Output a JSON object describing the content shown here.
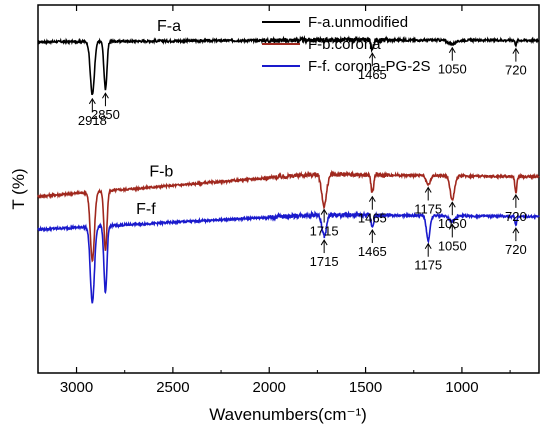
{
  "chart_data": {
    "type": "line",
    "title": "",
    "xlabel": "Wavenumbers(cm⁻¹)",
    "ylabel": "T (%)",
    "xlim": [
      3200,
      600
    ],
    "x_inverted": true,
    "x_ticks": [
      "3000",
      "2500",
      "2000",
      "1500",
      "1000"
    ],
    "x_tick_values": [
      3000,
      2500,
      2000,
      1500,
      1000
    ],
    "y_ticks_shown": false,
    "legend_position": "top-right",
    "series": [
      {
        "name": "F-a.unmodified",
        "label": "F-a",
        "color": "#000000",
        "baseline": 0.9,
        "tilt": 0.04,
        "peaks": [
          {
            "x": 2918,
            "depth": 0.58,
            "width": 15,
            "label": "2918"
          },
          {
            "x": 2850,
            "depth": 0.52,
            "width": 11,
            "label": "2850"
          },
          {
            "x": 1465,
            "depth": 0.1,
            "width": 9,
            "label": "1465"
          },
          {
            "x": 1050,
            "depth": 0.04,
            "width": 30,
            "label": "1050"
          },
          {
            "x": 720,
            "depth": 0.05,
            "width": 6,
            "label": "720"
          }
        ]
      },
      {
        "name": "F-b.corona",
        "label": "F-b",
        "color": "#a0281e",
        "baseline": 0.48,
        "tilt": 0.5,
        "peaks": [
          {
            "x": 2918,
            "depth": 0.75,
            "width": 15,
            "label": ""
          },
          {
            "x": 2850,
            "depth": 0.65,
            "width": 11,
            "label": ""
          },
          {
            "x": 1715,
            "depth": 0.34,
            "width": 18,
            "label": "1715"
          },
          {
            "x": 1465,
            "depth": 0.2,
            "width": 9,
            "label": "1465"
          },
          {
            "x": 1175,
            "depth": 0.1,
            "width": 16,
            "label": "1175"
          },
          {
            "x": 1050,
            "depth": 0.26,
            "width": 16,
            "label": "1050"
          },
          {
            "x": 720,
            "depth": 0.18,
            "width": 7,
            "label": "720"
          }
        ]
      },
      {
        "name": "F-f. corona-PG-2S",
        "label": "F-f",
        "color": "#1a1acc",
        "baseline": 0.39,
        "tilt": 0.33,
        "peaks": [
          {
            "x": 2918,
            "depth": 0.83,
            "width": 15,
            "label": ""
          },
          {
            "x": 2850,
            "depth": 0.73,
            "width": 11,
            "label": ""
          },
          {
            "x": 1715,
            "depth": 0.23,
            "width": 16,
            "label": "1715"
          },
          {
            "x": 1465,
            "depth": 0.12,
            "width": 9,
            "label": "1465"
          },
          {
            "x": 1175,
            "depth": 0.27,
            "width": 13,
            "label": "1175"
          },
          {
            "x": 1050,
            "depth": 0.06,
            "width": 20,
            "label": "1050"
          },
          {
            "x": 720,
            "depth": 0.1,
            "width": 6,
            "label": "720"
          }
        ]
      }
    ]
  }
}
